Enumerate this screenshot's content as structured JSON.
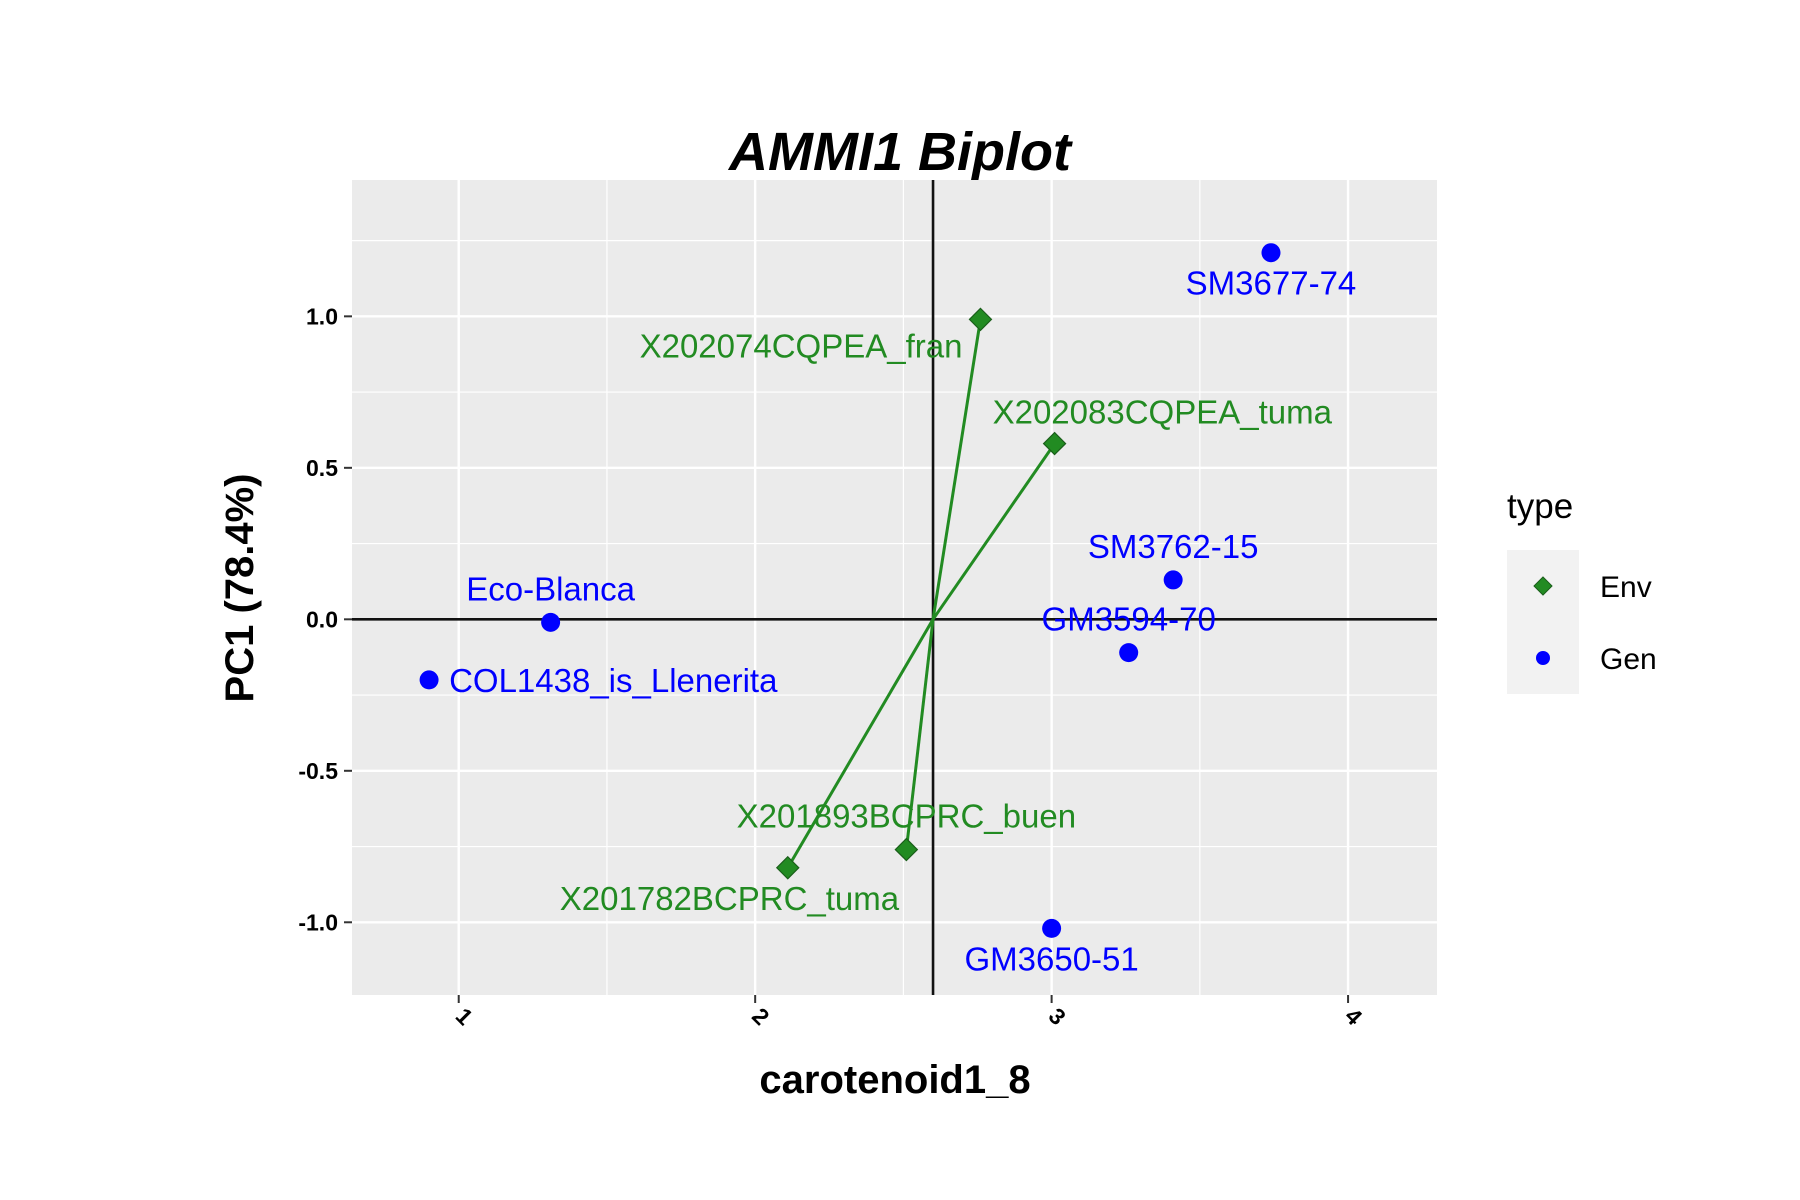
{
  "chart_data": {
    "type": "scatter",
    "title": "AMMI1 Biplot",
    "xlabel": "carotenoid1_8",
    "ylabel": "PC1 (78.4%)",
    "xlim": [
      0.64,
      4.3
    ],
    "ylim": [
      -1.24,
      1.45
    ],
    "x_ticks": [
      1,
      2,
      3,
      4
    ],
    "y_ticks": [
      -1.0,
      -0.5,
      0.0,
      0.5,
      1.0
    ],
    "x_tick_labels": [
      "1",
      "2",
      "3",
      "4"
    ],
    "y_tick_labels": [
      "-1.0",
      "-0.5",
      "0.0",
      "0.5",
      "1.0"
    ],
    "grid": true,
    "origin": {
      "x": 2.6,
      "y": 0.0
    },
    "legend": {
      "title": "type",
      "position": "right",
      "entries": [
        {
          "label": "Env",
          "shape": "diamond",
          "color": "#228B22"
        },
        {
          "label": "Gen",
          "shape": "circle",
          "color": "#0000FF"
        }
      ]
    },
    "series": [
      {
        "name": "Env",
        "color": "#228B22",
        "shape": "diamond",
        "points": [
          {
            "label": "X202074CQPEA_fran",
            "x": 2.76,
            "y": 0.99,
            "label_pos": "left-below"
          },
          {
            "label": "X202083CQPEA_tuma",
            "x": 3.01,
            "y": 0.58,
            "label_pos": "above-right"
          },
          {
            "label": "X201893BCPRC_buen",
            "x": 2.51,
            "y": -0.76,
            "label_pos": "above"
          },
          {
            "label": "X201782BCPRC_tuma",
            "x": 2.11,
            "y": -0.82,
            "label_pos": "below-right"
          }
        ]
      },
      {
        "name": "Gen",
        "color": "#0000FF",
        "shape": "circle",
        "points": [
          {
            "label": "SM3677-74",
            "x": 3.74,
            "y": 1.21,
            "label_pos": "below"
          },
          {
            "label": "SM3762-15",
            "x": 3.41,
            "y": 0.13,
            "label_pos": "above"
          },
          {
            "label": "GM3594-70",
            "x": 3.26,
            "y": -0.11,
            "label_pos": "above"
          },
          {
            "label": "Eco-Blanca",
            "x": 1.31,
            "y": -0.01,
            "label_pos": "above"
          },
          {
            "label": "COL1438_is_Llenerita",
            "x": 0.9,
            "y": -0.2,
            "label_pos": "right"
          },
          {
            "label": "GM3650-51",
            "x": 3.0,
            "y": -1.02,
            "label_pos": "below"
          }
        ]
      }
    ]
  }
}
